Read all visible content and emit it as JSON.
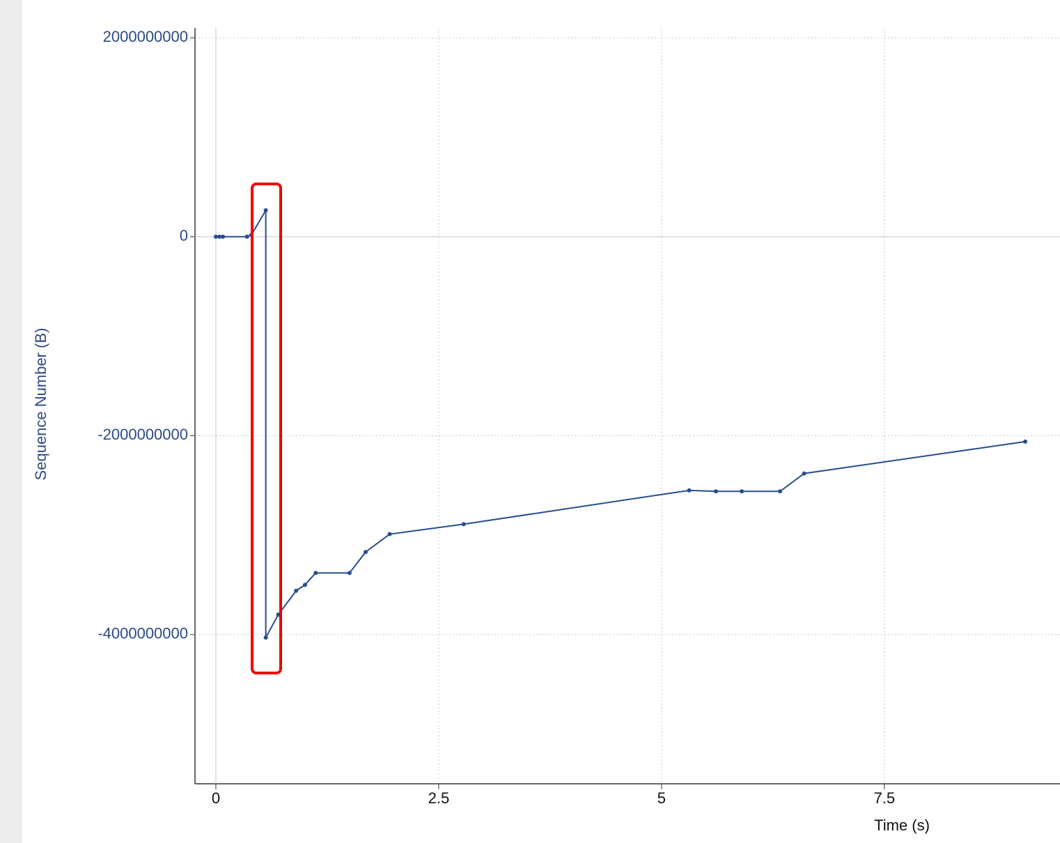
{
  "chart_data": {
    "type": "line",
    "xlabel": "Time (s)",
    "ylabel": "Sequence Number (B)",
    "x": [
      0,
      0.04,
      0.08,
      0.35,
      0.4,
      0.56,
      0.56,
      0.7,
      0.9,
      1.0,
      1.12,
      1.5,
      1.68,
      1.95,
      2.78,
      5.31,
      5.61,
      5.9,
      6.33,
      6.6,
      9.08
    ],
    "series": [
      {
        "name": "Sequence Number",
        "color": "#284d8e",
        "values": [
          0,
          0,
          0,
          0,
          20000000,
          266000000,
          -4030000000,
          -3800000000,
          -3560000000,
          -3500000000,
          -3380000000,
          -3380000000,
          -3170000000,
          -2990000000,
          -2890000000,
          -2550000000,
          -2560000000,
          -2560000000,
          -2560000000,
          -2380000000,
          -2060000000
        ]
      }
    ],
    "xlim": [
      -0.234,
      9.47
    ],
    "ylim": [
      -5500000000,
      2100000000
    ],
    "xticks": [
      0,
      2.5,
      5,
      7.5
    ],
    "yticks": [
      2000000000,
      0,
      -2000000000,
      -4000000000
    ],
    "grid": true
  }
}
